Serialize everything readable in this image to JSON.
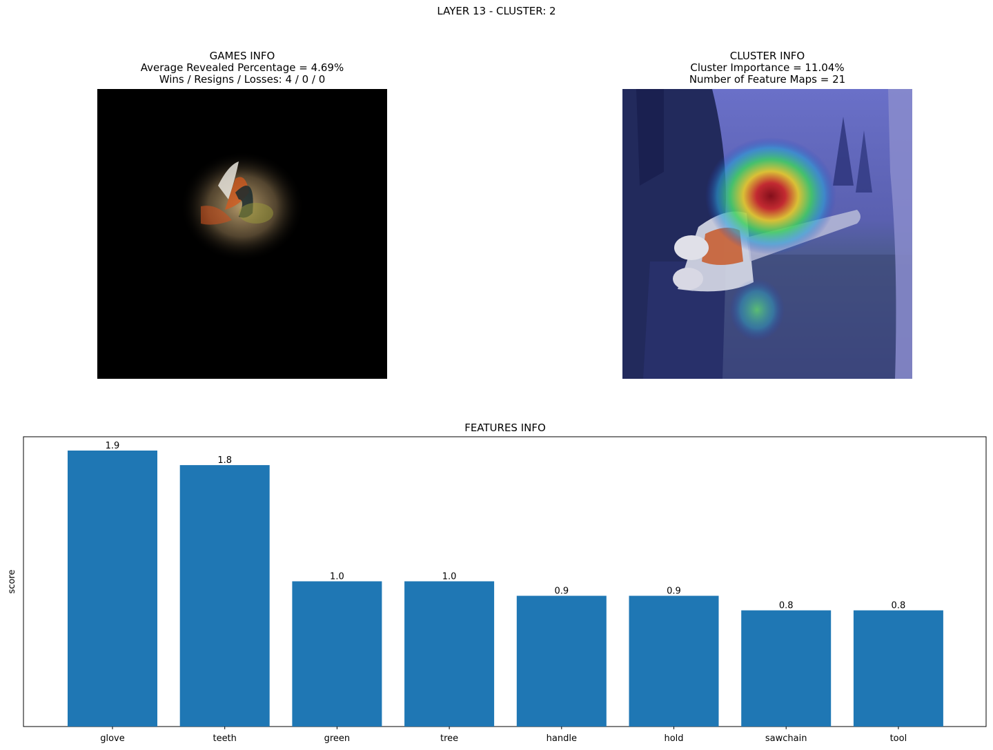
{
  "suptitle": "LAYER 13 - CLUSTER: 2",
  "games_info": {
    "title": "GAMES INFO",
    "line1": "Average Revealed Percentage = 4.69%",
    "line2": "Wins / Resigns / Losses: 4 / 0 / 0"
  },
  "cluster_info": {
    "title": "CLUSTER INFO",
    "line1": "Cluster Importance = 11.04%",
    "line2": "Number of Feature Maps = 21"
  },
  "chart_data": {
    "type": "bar",
    "title": "FEATURES INFO",
    "xlabel": "",
    "ylabel": "score",
    "categories": [
      "glove",
      "teeth",
      "green",
      "tree",
      "handle",
      "hold",
      "sawchain",
      "tool"
    ],
    "values": [
      1.9,
      1.8,
      1.0,
      1.0,
      0.9,
      0.9,
      0.8,
      0.8
    ],
    "data_labels": [
      "1.9",
      "1.8",
      "1.0",
      "1.0",
      "0.9",
      "0.9",
      "0.8",
      "0.8"
    ],
    "ylim": [
      0,
      1.995
    ],
    "bar_color": "#1f77b4",
    "grid": false,
    "y_ticks_visible": false
  }
}
